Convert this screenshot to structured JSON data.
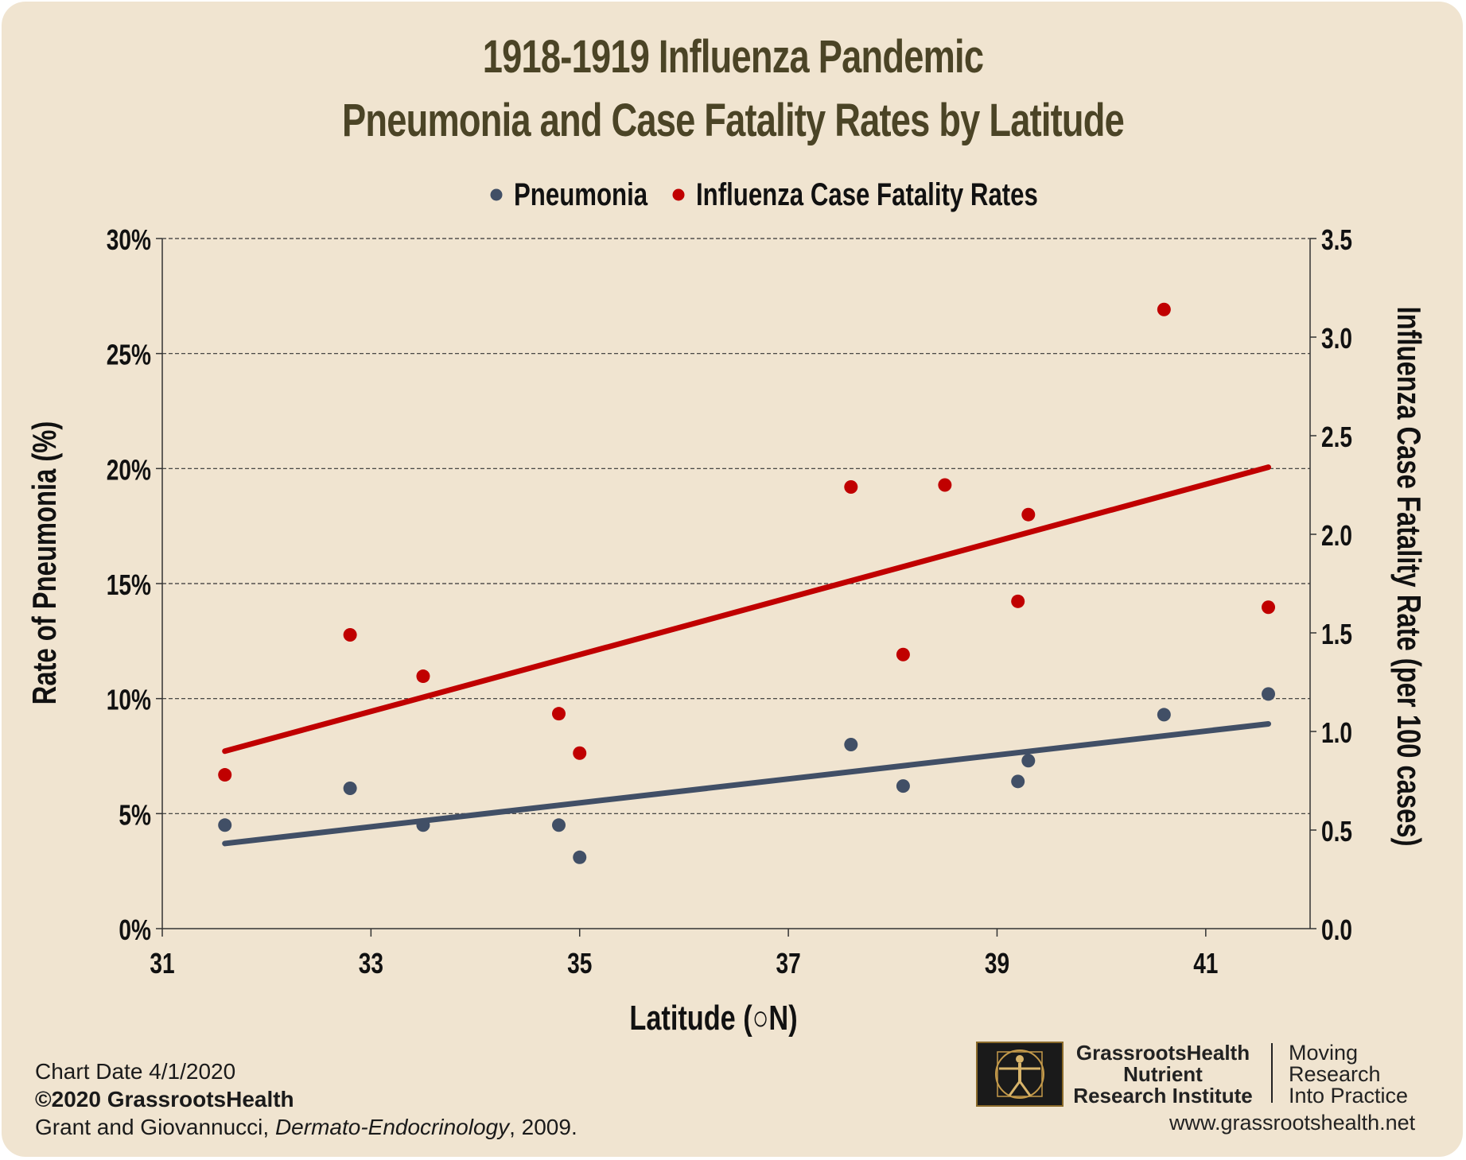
{
  "title_line1": "1918-1919 Influenza Pandemic",
  "title_line2": "Pneumonia and Case Fatality Rates by Latitude",
  "chart_data": {
    "type": "scatter",
    "title": "1918-1919 Influenza Pandemic Pneumonia and Case Fatality Rates by Latitude",
    "xlabel": "Latitude (○N)",
    "ylabel_left": "Rate of Pneumonia (%)",
    "ylabel_right": "Influenza Case Fatality Rate (per 100 cases)",
    "xlim": [
      31,
      42
    ],
    "x_ticks": [
      "31",
      "33",
      "35",
      "37",
      "39",
      "41"
    ],
    "ylim_left": [
      0,
      30
    ],
    "y_left_ticks": [
      "0%",
      "5%",
      "10%",
      "15%",
      "20%",
      "25%",
      "30%"
    ],
    "ylim_right": [
      0,
      3.5
    ],
    "y_right_ticks": [
      "0.0",
      "0.5",
      "1.0",
      "1.5",
      "2.0",
      "2.5",
      "3.0",
      "3.5"
    ],
    "grid": "horizontal dashed",
    "legend_position": "top-center",
    "series": [
      {
        "name": "Pneumonia",
        "axis": "left",
        "color": "#414f66",
        "points": [
          [
            31.6,
            4.5
          ],
          [
            32.8,
            6.1
          ],
          [
            33.5,
            4.5
          ],
          [
            34.8,
            4.5
          ],
          [
            35.0,
            3.1
          ],
          [
            37.6,
            8.0
          ],
          [
            38.1,
            6.2
          ],
          [
            39.2,
            6.4
          ],
          [
            39.3,
            7.3
          ],
          [
            40.6,
            9.3
          ],
          [
            41.6,
            10.2
          ]
        ],
        "trendline": [
          [
            31.6,
            3.7
          ],
          [
            41.6,
            8.9
          ]
        ]
      },
      {
        "name": "Influenza Case Fatality Rates",
        "axis": "right",
        "color": "#c00000",
        "points": [
          [
            31.6,
            0.78
          ],
          [
            32.8,
            1.49
          ],
          [
            33.5,
            1.28
          ],
          [
            34.8,
            1.09
          ],
          [
            35.0,
            0.89
          ],
          [
            37.6,
            2.24
          ],
          [
            38.1,
            1.39
          ],
          [
            38.5,
            2.25
          ],
          [
            39.2,
            1.66
          ],
          [
            39.3,
            2.1
          ],
          [
            40.6,
            3.14
          ],
          [
            41.6,
            1.63
          ]
        ],
        "trendline": [
          [
            31.6,
            0.9
          ],
          [
            41.6,
            2.34
          ]
        ]
      }
    ]
  },
  "footer": {
    "chart_date": "Chart Date 4/1/2020",
    "copyright": "©2020 GrassrootsHealth",
    "citation_authors": "Grant and Giovannucci, ",
    "citation_journal": "Dermato-Endocrinology",
    "citation_year": ", 2009."
  },
  "logo": {
    "name_line1": "GrassrootsHealth",
    "name_line2": "Nutrient",
    "name_line3": "Research Institute",
    "tagline_line1": "Moving",
    "tagline_line2": "Research",
    "tagline_line3": "Into Practice",
    "website": "www.grassrootshealth.net"
  }
}
